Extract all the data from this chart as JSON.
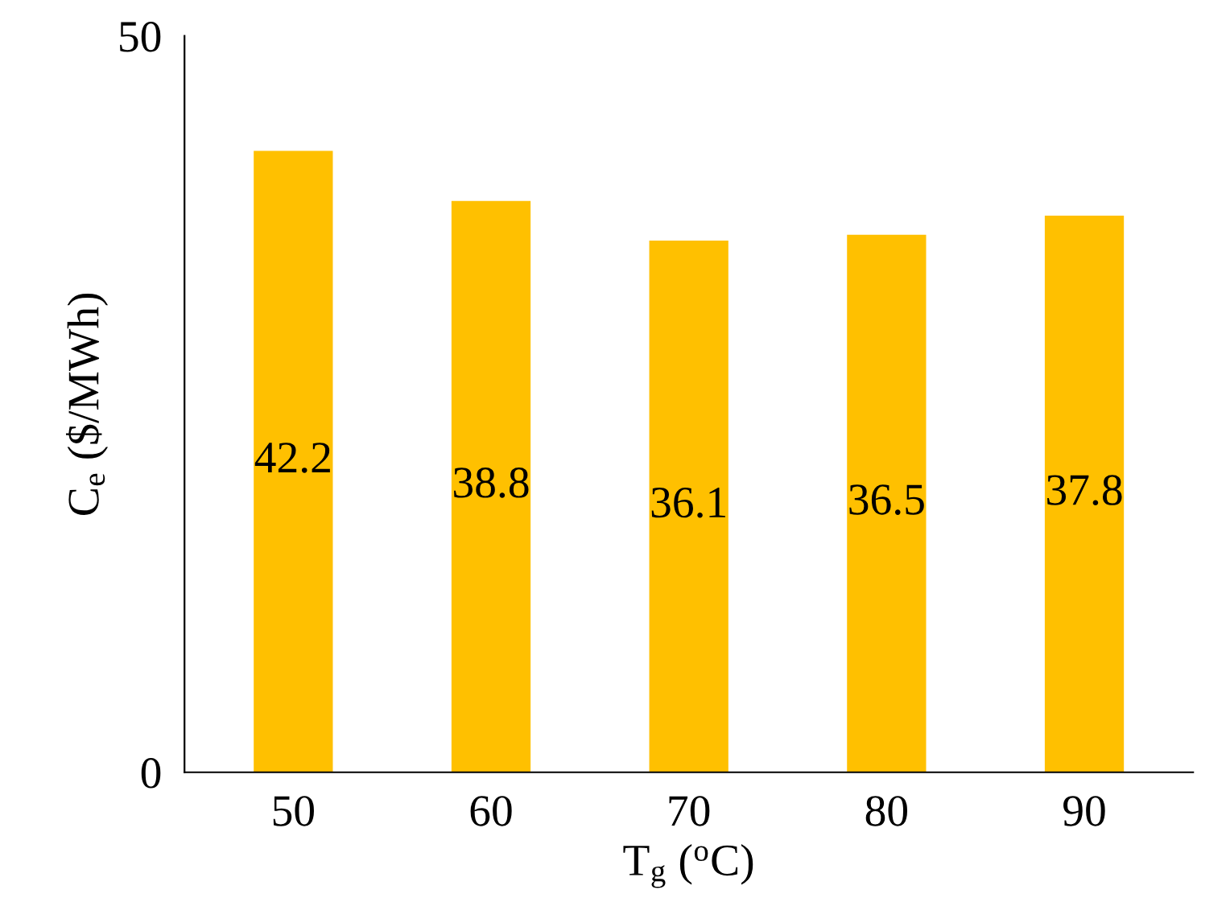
{
  "chart_data": {
    "type": "bar",
    "xlabel": "T$_{g}$ ($^{o}$C)",
    "ylabel": "C$_{e}$ ($/MWh)",
    "categories": [
      "50",
      "60",
      "70",
      "80",
      "90"
    ],
    "values": [
      42.2,
      38.8,
      36.1,
      36.5,
      37.8
    ],
    "color": "#ffc000",
    "ylim": [
      0,
      50
    ],
    "yticks": [
      0,
      50
    ],
    "grid": false,
    "legend": false,
    "data_labels": true
  }
}
